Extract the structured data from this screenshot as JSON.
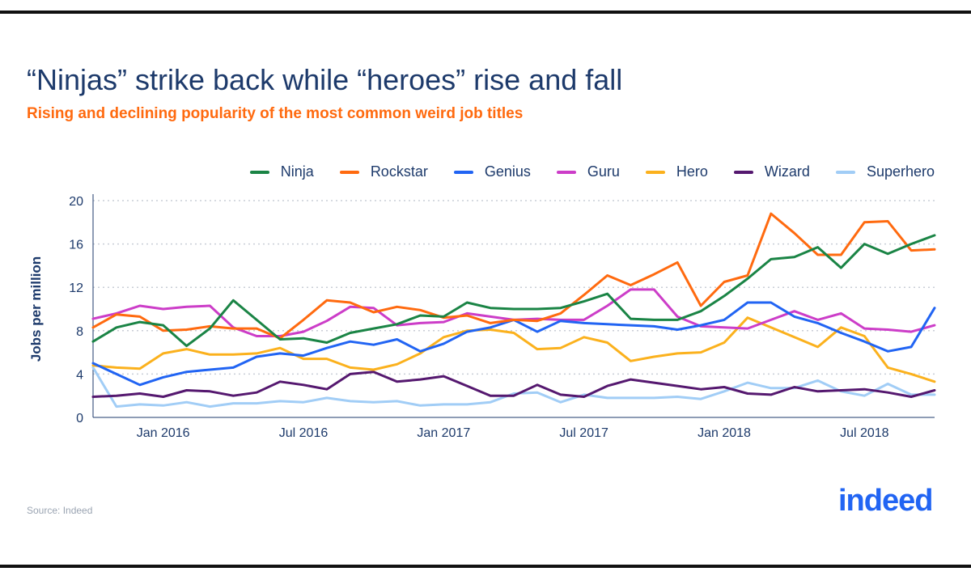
{
  "header": {
    "title": "“Ninjas” strike back while “heroes” rise and fall",
    "subtitle": "Rising and declining popularity of the most common weird job titles"
  },
  "footer": {
    "source": "Source: Indeed",
    "logo_text": "indeed"
  },
  "colors": {
    "title": "#1d3a6b",
    "subtitle": "#ff6a0f",
    "logo": "#2164f3"
  },
  "chart_data": {
    "type": "line",
    "title": "“Ninjas” strike back while “heroes” rise and fall",
    "subtitle": "Rising and declining popularity of the most common weird job titles",
    "xlabel": "",
    "ylabel": "Jobs per million",
    "ylim": [
      0,
      20
    ],
    "yticks": [
      0,
      4,
      8,
      12,
      16,
      20
    ],
    "grid": true,
    "legend_position": "top-right",
    "x_start": "Oct 2015",
    "x_end": "Oct 2018",
    "x_tick_labels": [
      {
        "label": "Jan 2016",
        "index": 3
      },
      {
        "label": "Jul 2016",
        "index": 9
      },
      {
        "label": "Jan 2017",
        "index": 15
      },
      {
        "label": "Jul 2017",
        "index": 21
      },
      {
        "label": "Jan 2018",
        "index": 27
      },
      {
        "label": "Jul 2018",
        "index": 33
      }
    ],
    "series": [
      {
        "name": "Ninja",
        "color": "#1a8445",
        "values": [
          7.0,
          8.3,
          8.8,
          8.5,
          6.6,
          8.2,
          10.8,
          9.0,
          7.2,
          7.3,
          6.9,
          7.8,
          8.2,
          8.6,
          9.4,
          9.3,
          10.6,
          10.1,
          10.0,
          10.0,
          10.1,
          10.7,
          11.4,
          9.1,
          9.0,
          9.0,
          9.8,
          11.2,
          12.8,
          14.6,
          14.8,
          15.7,
          13.8,
          16.0,
          15.1,
          16.0,
          16.8
        ]
      },
      {
        "name": "Rockstar",
        "color": "#ff6a0f",
        "values": [
          8.3,
          9.5,
          9.3,
          8.0,
          8.1,
          8.4,
          8.2,
          8.2,
          7.3,
          9.0,
          10.8,
          10.6,
          9.7,
          10.2,
          9.9,
          9.2,
          9.4,
          8.7,
          9.0,
          8.9,
          9.6,
          11.3,
          13.1,
          12.2,
          13.2,
          14.3,
          10.3,
          12.5,
          13.1,
          18.8,
          17.0,
          15.0,
          15.0,
          18.0,
          18.1,
          15.4,
          15.5
        ]
      },
      {
        "name": "Genius",
        "color": "#2164f3",
        "values": [
          5.0,
          4.0,
          3.0,
          3.7,
          4.2,
          4.4,
          4.6,
          5.6,
          5.9,
          5.7,
          6.4,
          7.0,
          6.7,
          7.2,
          6.1,
          6.8,
          7.9,
          8.3,
          9.0,
          7.9,
          8.9,
          8.7,
          8.6,
          8.5,
          8.4,
          8.1,
          8.5,
          9.0,
          10.6,
          10.6,
          9.3,
          8.7,
          7.8,
          7.0,
          6.1,
          6.5,
          10.1
        ]
      },
      {
        "name": "Guru",
        "color": "#cc3dc8",
        "values": [
          9.1,
          9.6,
          10.3,
          10.0,
          10.2,
          10.3,
          8.3,
          7.5,
          7.5,
          7.9,
          8.9,
          10.2,
          10.1,
          8.5,
          8.7,
          8.8,
          9.6,
          9.3,
          9.0,
          9.1,
          9.0,
          9.0,
          10.3,
          11.8,
          11.8,
          9.3,
          8.4,
          8.3,
          8.2,
          9.0,
          9.8,
          9.0,
          9.6,
          8.2,
          8.1,
          7.9,
          8.5
        ]
      },
      {
        "name": "Hero",
        "color": "#fbb11d",
        "values": [
          4.8,
          4.6,
          4.5,
          5.9,
          6.3,
          5.8,
          5.8,
          5.9,
          6.4,
          5.4,
          5.4,
          4.6,
          4.4,
          4.9,
          5.9,
          7.4,
          8.0,
          8.1,
          7.8,
          6.3,
          6.4,
          7.4,
          6.9,
          5.2,
          5.6,
          5.9,
          6.0,
          6.9,
          9.2,
          8.3,
          7.4,
          6.5,
          8.3,
          7.5,
          4.6,
          4.0,
          3.3
        ]
      },
      {
        "name": "Wizard",
        "color": "#55186f",
        "values": [
          1.9,
          2.0,
          2.2,
          1.9,
          2.5,
          2.4,
          2.0,
          2.3,
          3.3,
          3.0,
          2.6,
          4.0,
          4.2,
          3.3,
          3.5,
          3.8,
          2.9,
          2.0,
          2.0,
          3.0,
          2.1,
          1.9,
          2.9,
          3.5,
          3.2,
          2.9,
          2.6,
          2.8,
          2.2,
          2.1,
          2.8,
          2.4,
          2.5,
          2.6,
          2.3,
          1.9,
          2.5
        ]
      },
      {
        "name": "Superhero",
        "color": "#a1cdf6",
        "values": [
          4.6,
          1.0,
          1.2,
          1.1,
          1.4,
          1.0,
          1.3,
          1.3,
          1.5,
          1.4,
          1.8,
          1.5,
          1.4,
          1.5,
          1.1,
          1.2,
          1.2,
          1.4,
          2.2,
          2.3,
          1.4,
          2.1,
          1.8,
          1.8,
          1.8,
          1.9,
          1.7,
          2.4,
          3.2,
          2.7,
          2.7,
          3.4,
          2.4,
          2.0,
          3.1,
          2.1,
          2.1
        ]
      }
    ]
  }
}
